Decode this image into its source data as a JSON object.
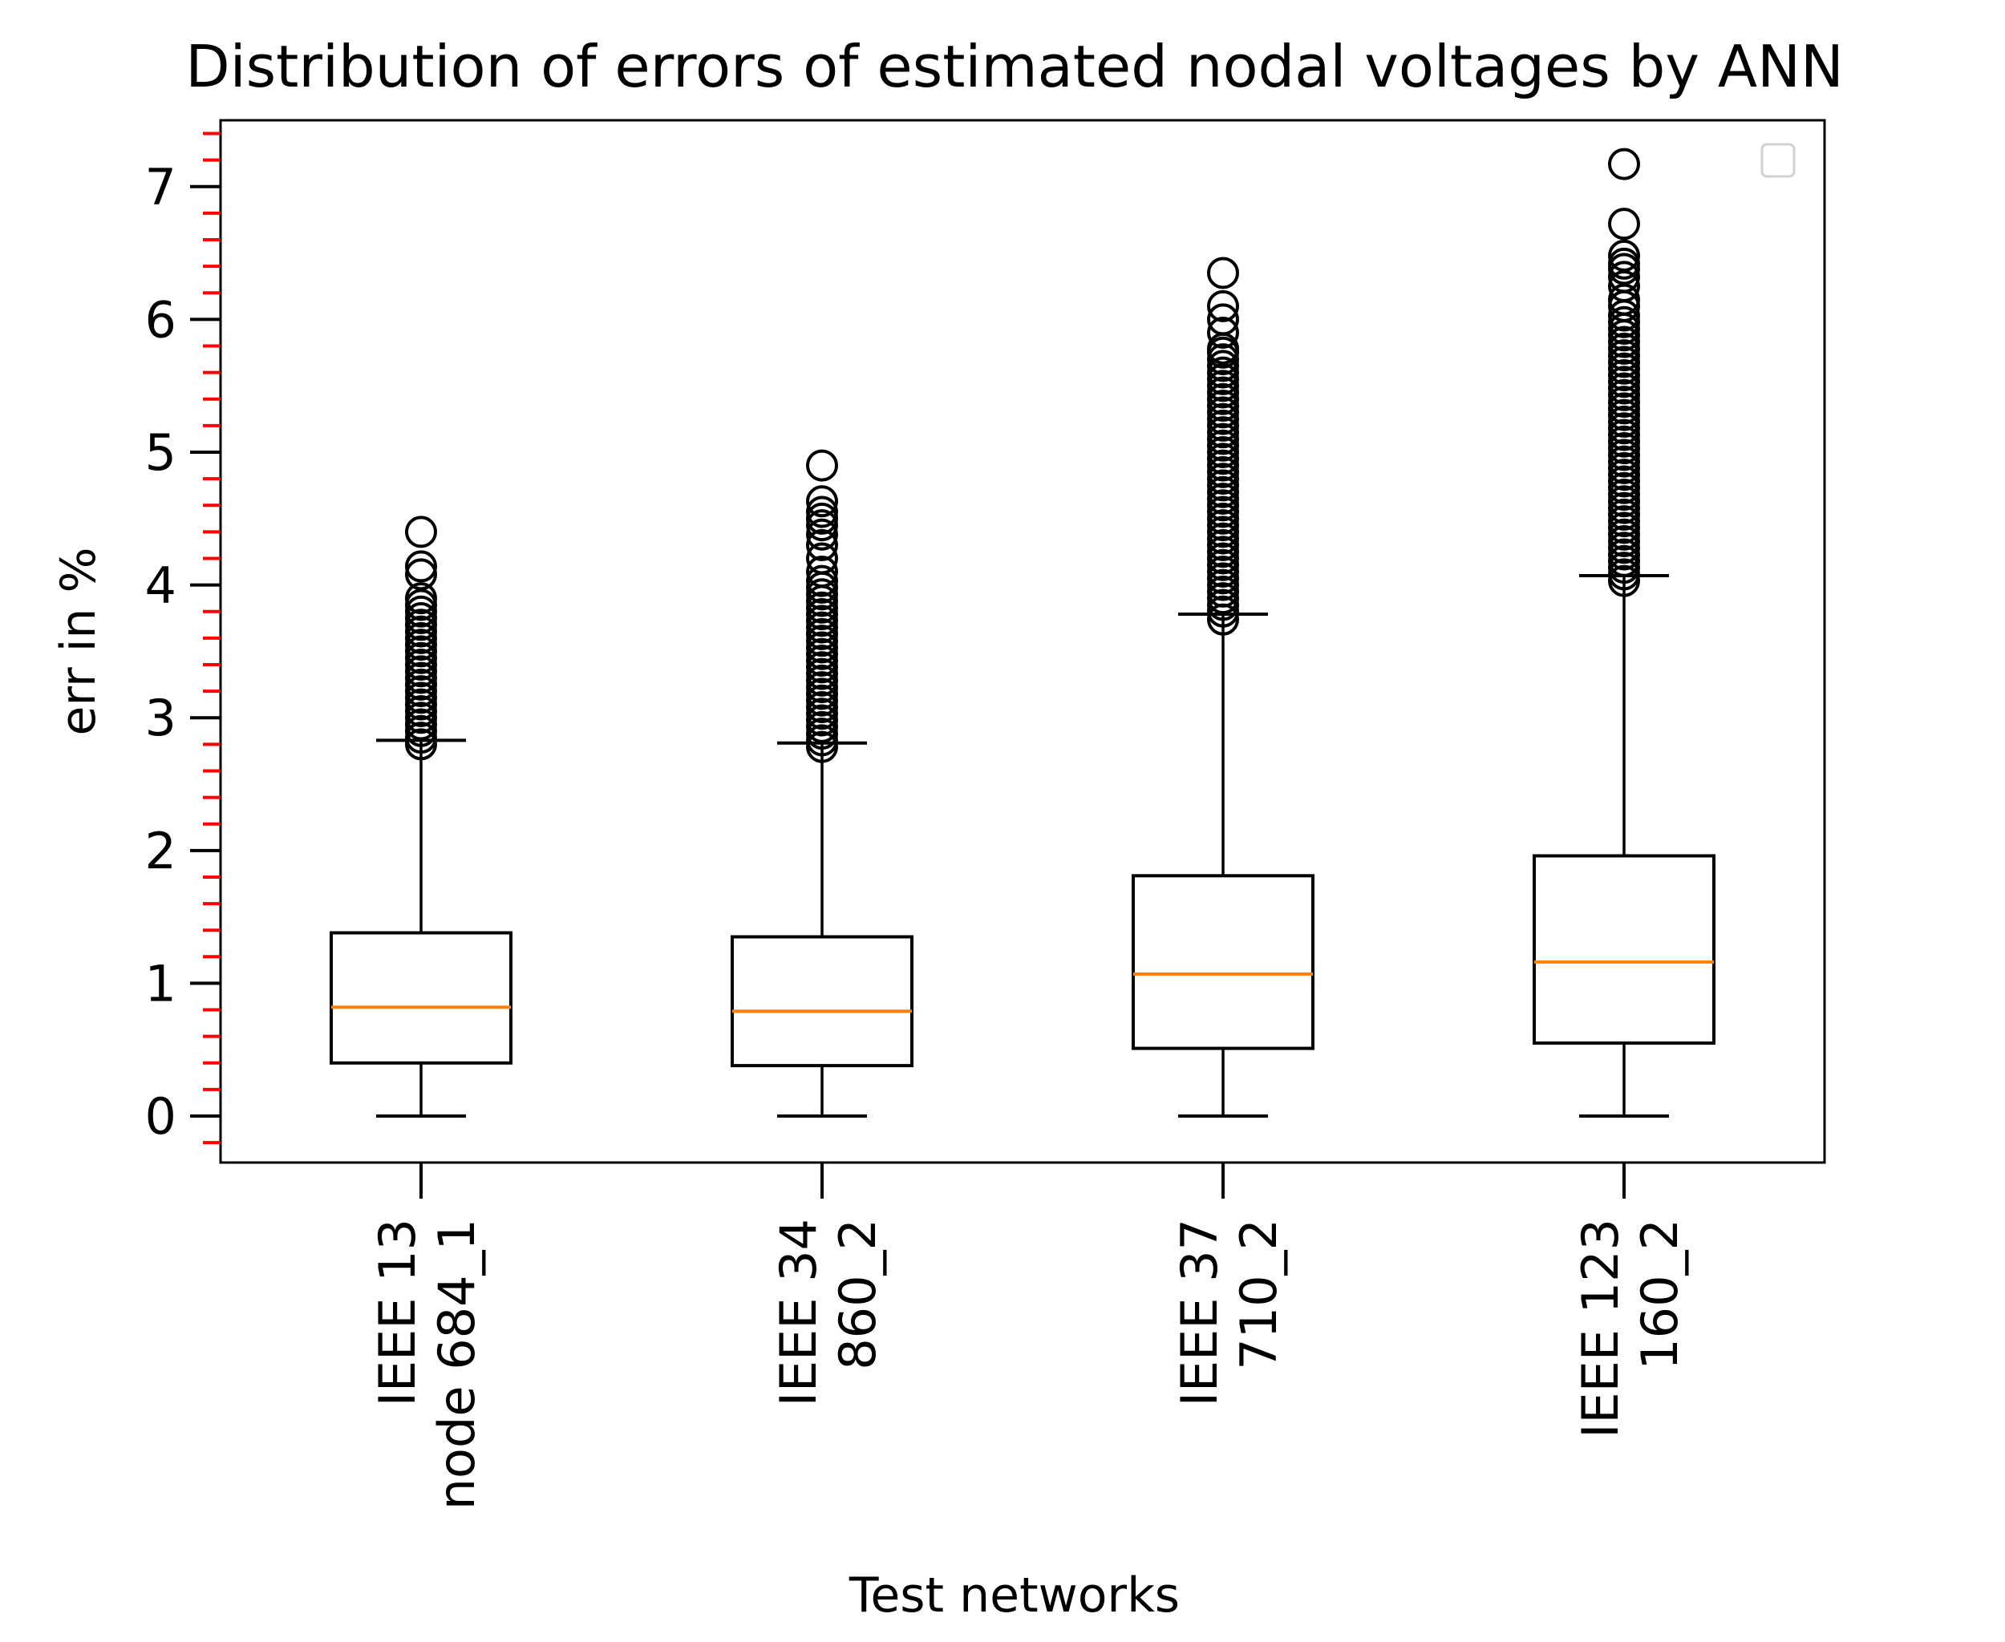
{
  "chart_data": {
    "type": "boxplot",
    "title": "Distribution of errors of estimated nodal voltages by ANN",
    "xlabel": "Test networks",
    "ylabel": "err in %",
    "ylim": [
      -0.35,
      7.5
    ],
    "yticks": [
      0,
      1,
      2,
      3,
      4,
      5,
      6,
      7
    ],
    "minor_tick_color": "#ff0000",
    "median_color": "#ff7f0e",
    "legend": "top-right (empty)",
    "categories": [
      {
        "line1": "IEEE 13",
        "line2": "node 684_1"
      },
      {
        "line1": "IEEE 34",
        "line2": "860_2"
      },
      {
        "line1": "IEEE 37",
        "line2": "710_2"
      },
      {
        "line1": "IEEE 123",
        "line2": "160_2"
      }
    ],
    "series": [
      {
        "name": "IEEE 13 node 684_1",
        "whisker_low": 0.0,
        "q1": 0.4,
        "median": 0.82,
        "q3": 1.38,
        "whisker_high": 2.83,
        "outliers": [
          2.8,
          2.85,
          2.9,
          2.95,
          3.0,
          3.05,
          3.1,
          3.15,
          3.2,
          3.25,
          3.3,
          3.35,
          3.4,
          3.45,
          3.5,
          3.55,
          3.6,
          3.65,
          3.7,
          3.75,
          3.8,
          3.85,
          3.9,
          4.08,
          4.14,
          4.4
        ]
      },
      {
        "name": "IEEE 34 860_2",
        "whisker_low": 0.0,
        "q1": 0.38,
        "median": 0.79,
        "q3": 1.35,
        "whisker_high": 2.81,
        "outliers": [
          2.78,
          2.83,
          2.88,
          2.93,
          2.98,
          3.03,
          3.08,
          3.13,
          3.18,
          3.23,
          3.28,
          3.33,
          3.38,
          3.43,
          3.48,
          3.53,
          3.58,
          3.63,
          3.68,
          3.73,
          3.78,
          3.83,
          3.88,
          3.93,
          3.98,
          4.03,
          4.1,
          4.2,
          4.3,
          4.38,
          4.45,
          4.5,
          4.55,
          4.63,
          4.9
        ]
      },
      {
        "name": "IEEE 37 710_2",
        "whisker_low": 0.0,
        "q1": 0.51,
        "median": 1.07,
        "q3": 1.81,
        "whisker_high": 3.78,
        "outliers": [
          3.74,
          3.8,
          3.85,
          3.9,
          3.95,
          4.0,
          4.05,
          4.1,
          4.15,
          4.2,
          4.25,
          4.3,
          4.35,
          4.4,
          4.45,
          4.5,
          4.55,
          4.6,
          4.65,
          4.7,
          4.75,
          4.8,
          4.85,
          4.9,
          4.95,
          5.0,
          5.05,
          5.1,
          5.15,
          5.2,
          5.25,
          5.3,
          5.35,
          5.4,
          5.45,
          5.5,
          5.55,
          5.6,
          5.65,
          5.7,
          5.75,
          5.78,
          5.9,
          6.0,
          6.1,
          6.35
        ]
      },
      {
        "name": "IEEE 123 160_2",
        "whisker_low": 0.0,
        "q1": 0.55,
        "median": 1.16,
        "q3": 1.96,
        "whisker_high": 4.07,
        "outliers": [
          4.03,
          4.08,
          4.13,
          4.18,
          4.23,
          4.28,
          4.33,
          4.38,
          4.43,
          4.48,
          4.53,
          4.58,
          4.63,
          4.68,
          4.73,
          4.78,
          4.83,
          4.88,
          4.93,
          4.98,
          5.03,
          5.08,
          5.13,
          5.18,
          5.23,
          5.28,
          5.33,
          5.38,
          5.43,
          5.48,
          5.53,
          5.58,
          5.63,
          5.68,
          5.73,
          5.78,
          5.83,
          5.88,
          5.93,
          5.98,
          6.03,
          6.1,
          6.15,
          6.25,
          6.32,
          6.38,
          6.42,
          6.48,
          6.72,
          7.17
        ]
      }
    ]
  }
}
